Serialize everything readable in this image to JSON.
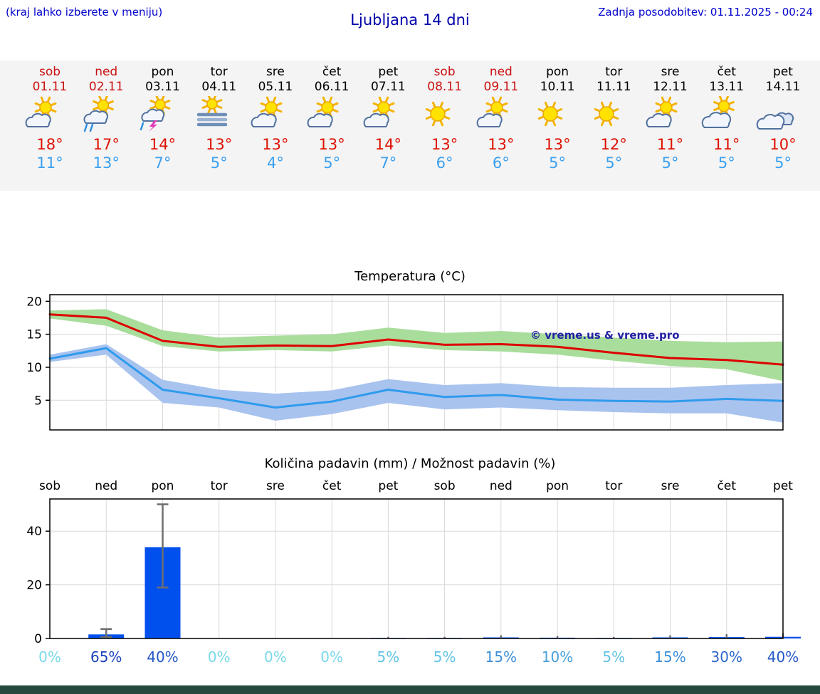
{
  "page": {
    "background": "#ffffff",
    "footer_bar_color": "#25493f"
  },
  "header": {
    "menu_hint": "(kraj lahko izberete v meniju)",
    "title": "Ljubljana 14 dni",
    "last_update": "Zadnja posodobitev: 01.11.2025 - 00:24"
  },
  "forecast_strip": {
    "bg": "#f4f4f4",
    "tmax_color": "#dd1100",
    "tmin_color": "#3aa0f0",
    "weekend_color": "#cc1111",
    "weekday_color": "#000000",
    "days": [
      {
        "name": "sob",
        "date": "01.11",
        "color": "#cc1111",
        "icon": "sun-cloud",
        "tmax": "18°",
        "tmin": "11°"
      },
      {
        "name": "ned",
        "date": "02.11",
        "color": "#cc1111",
        "icon": "rain-shower",
        "tmax": "17°",
        "tmin": "13°"
      },
      {
        "name": "pon",
        "date": "03.11",
        "color": "#000000",
        "icon": "thunderstorm",
        "tmax": "14°",
        "tmin": "7°"
      },
      {
        "name": "tor",
        "date": "04.11",
        "color": "#000000",
        "icon": "fog",
        "tmax": "13°",
        "tmin": "5°"
      },
      {
        "name": "sre",
        "date": "05.11",
        "color": "#000000",
        "icon": "sun-cloud",
        "tmax": "13°",
        "tmin": "4°"
      },
      {
        "name": "čet",
        "date": "06.11",
        "color": "#000000",
        "icon": "sun-cloud",
        "tmax": "13°",
        "tmin": "5°"
      },
      {
        "name": "pet",
        "date": "07.11",
        "color": "#000000",
        "icon": "sun-cloud",
        "tmax": "14°",
        "tmin": "7°"
      },
      {
        "name": "sob",
        "date": "08.11",
        "color": "#cc1111",
        "icon": "sun",
        "tmax": "13°",
        "tmin": "6°"
      },
      {
        "name": "ned",
        "date": "09.11",
        "color": "#cc1111",
        "icon": "sun-cloud",
        "tmax": "13°",
        "tmin": "6°"
      },
      {
        "name": "pon",
        "date": "10.11",
        "color": "#000000",
        "icon": "sun",
        "tmax": "13°",
        "tmin": "5°"
      },
      {
        "name": "tor",
        "date": "11.11",
        "color": "#000000",
        "icon": "sun",
        "tmax": "12°",
        "tmin": "5°"
      },
      {
        "name": "sre",
        "date": "12.11",
        "color": "#000000",
        "icon": "sun-cloud",
        "tmax": "11°",
        "tmin": "5°"
      },
      {
        "name": "čet",
        "date": "13.11",
        "color": "#000000",
        "icon": "sun-cloud-big",
        "tmax": "11°",
        "tmin": "5°"
      },
      {
        "name": "pet",
        "date": "14.11",
        "color": "#000000",
        "icon": "cloudy",
        "tmax": "10°",
        "tmin": "5°"
      }
    ]
  },
  "chart_data": [
    {
      "type": "line",
      "title": "Temperatura (°C)",
      "x": [
        "sob",
        "ned",
        "pon",
        "tor",
        "sre",
        "čet",
        "pet",
        "sob",
        "ned",
        "pon",
        "tor",
        "sre",
        "čet",
        "pet"
      ],
      "ylim": [
        0.5,
        21
      ],
      "yticks": [
        5,
        10,
        15,
        20
      ],
      "grid": true,
      "legend": "none",
      "watermark": "© vreme.us & vreme.pro",
      "series": [
        {
          "name": "Najvišja temperatura",
          "color": "#dd0000",
          "values": [
            18.0,
            17.5,
            14.0,
            13.1,
            13.3,
            13.2,
            14.2,
            13.4,
            13.5,
            13.1,
            12.2,
            11.4,
            11.1,
            10.4
          ],
          "band": {
            "color": "#a9dd9b",
            "upper": [
              18.6,
              18.8,
              15.6,
              14.5,
              14.8,
              15.0,
              16.0,
              15.2,
              15.5,
              15.0,
              14.5,
              14.0,
              13.8,
              13.9
            ],
            "lower": [
              17.4,
              16.3,
              13.2,
              12.4,
              12.6,
              12.4,
              13.3,
              12.6,
              12.4,
              11.9,
              11.0,
              10.2,
              9.7,
              7.9
            ]
          }
        },
        {
          "name": "Najnižja temperatura",
          "color": "#2f9bed",
          "values": [
            11.3,
            12.9,
            6.6,
            5.3,
            3.9,
            4.8,
            6.6,
            5.5,
            5.8,
            5.1,
            4.9,
            4.8,
            5.2,
            4.9
          ],
          "band": {
            "color": "#a9c3ef",
            "upper": [
              11.9,
              13.5,
              8.1,
              6.6,
              6.0,
              6.5,
              8.2,
              7.3,
              7.6,
              7.0,
              6.9,
              6.9,
              7.3,
              7.6
            ],
            "lower": [
              10.8,
              11.9,
              4.6,
              3.9,
              1.9,
              2.9,
              4.6,
              3.6,
              3.9,
              3.5,
              3.2,
              3.0,
              3.0,
              1.6
            ]
          }
        }
      ]
    },
    {
      "type": "bar",
      "title": "Količina padavin (mm) / Možnost padavin (%)",
      "x": [
        "sob",
        "ned",
        "pon",
        "tor",
        "sre",
        "čet",
        "pet",
        "sob",
        "ned",
        "pon",
        "tor",
        "sre",
        "čet",
        "pet"
      ],
      "ylim": [
        0,
        52
      ],
      "yticks": [
        0,
        20,
        40
      ],
      "bar_color": "#0050ee",
      "error_color": "#6e6e6e",
      "values": [
        0,
        1.5,
        34,
        0,
        0,
        0,
        0.2,
        0.2,
        0.4,
        0.3,
        0.2,
        0.4,
        0.5,
        0.6
      ],
      "error_low": [
        0,
        0.5,
        19,
        0,
        0,
        0,
        0,
        0,
        0,
        0,
        0,
        0,
        0,
        0
      ],
      "error_high": [
        0,
        3.5,
        50,
        0,
        0,
        0,
        0.6,
        0.6,
        1.2,
        0.9,
        0.6,
        1.2,
        1.6,
        2.0
      ],
      "probabilities": [
        {
          "label": "0%",
          "color": "#7ad8e8"
        },
        {
          "label": "65%",
          "color": "#1c42bc"
        },
        {
          "label": "40%",
          "color": "#2458c8"
        },
        {
          "label": "0%",
          "color": "#7ad8e8"
        },
        {
          "label": "0%",
          "color": "#7ad8e8"
        },
        {
          "label": "0%",
          "color": "#7ad8e8"
        },
        {
          "label": "5%",
          "color": "#60c4e4"
        },
        {
          "label": "5%",
          "color": "#60c4e4"
        },
        {
          "label": "15%",
          "color": "#3b8ed8"
        },
        {
          "label": "10%",
          "color": "#46a0dc"
        },
        {
          "label": "5%",
          "color": "#60c4e4"
        },
        {
          "label": "15%",
          "color": "#3b8ed8"
        },
        {
          "label": "30%",
          "color": "#2b66cc"
        },
        {
          "label": "40%",
          "color": "#2458c8"
        }
      ]
    }
  ]
}
